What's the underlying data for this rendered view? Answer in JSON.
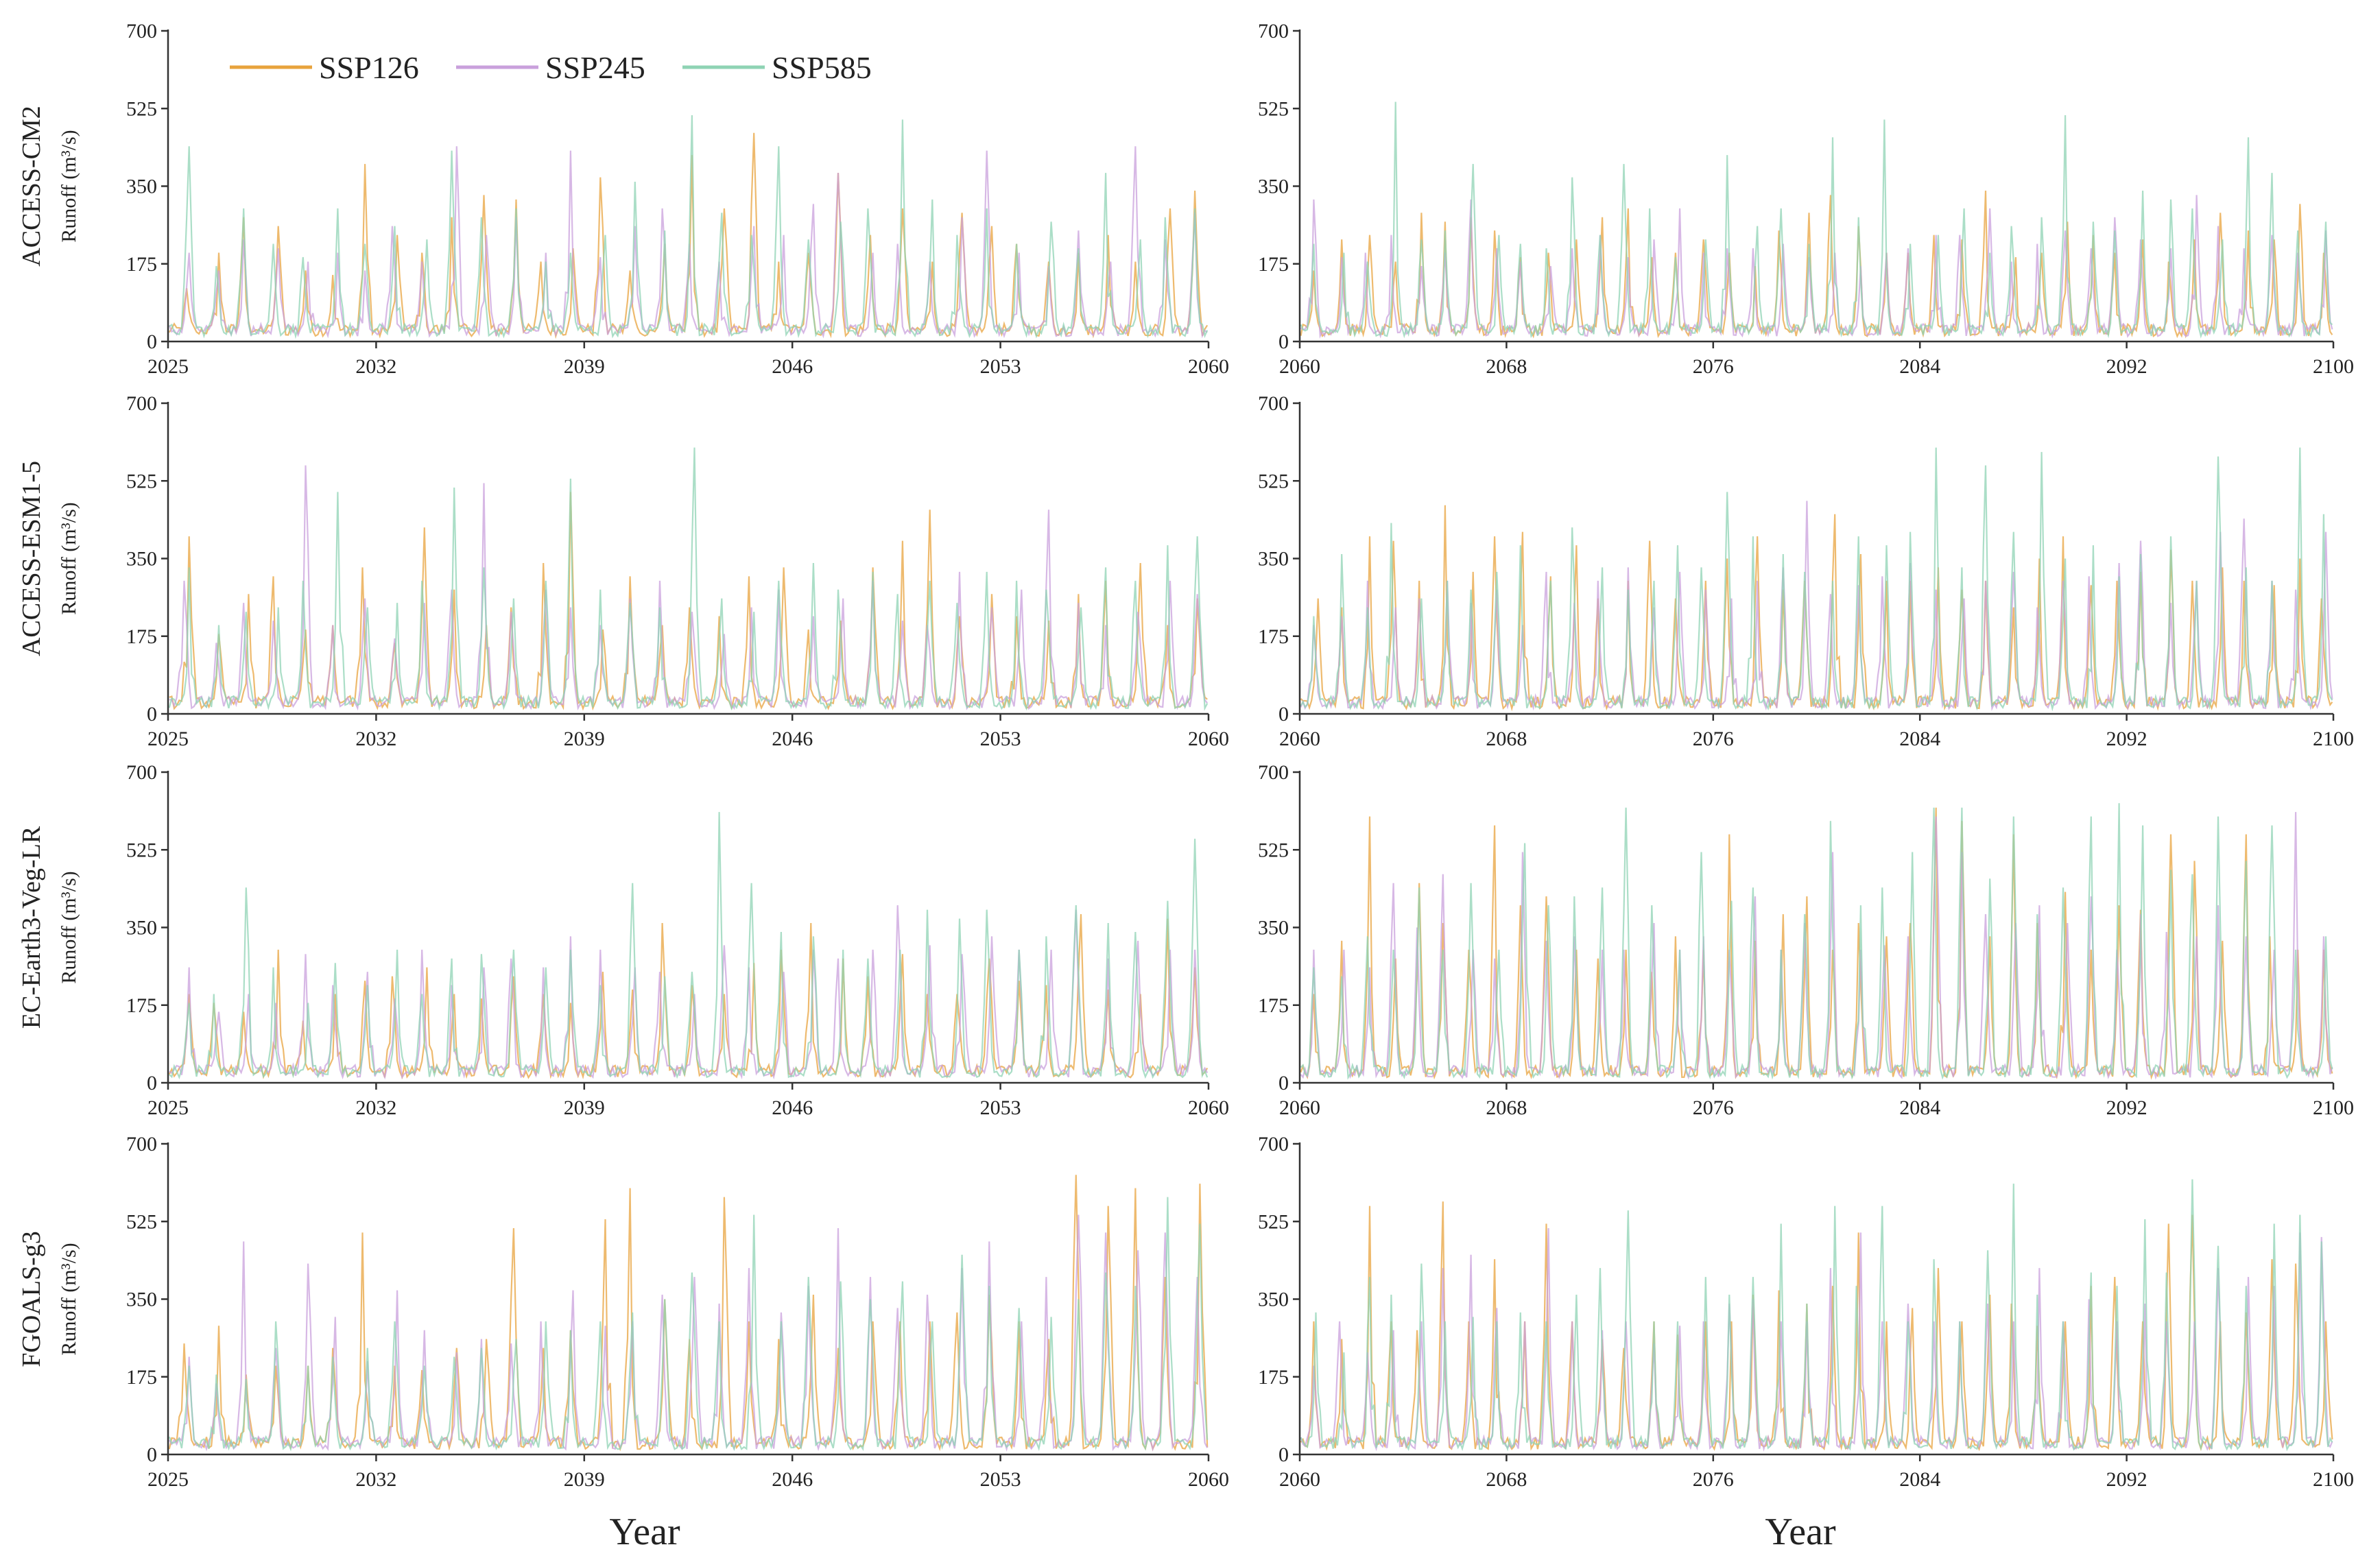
{
  "chart_data": {
    "type": "line",
    "x_label": "Year",
    "y_label": "Runoff (m³/s)",
    "y_ticks": [
      0,
      175,
      350,
      525,
      700
    ],
    "ylim": [
      0,
      700
    ],
    "periods": [
      {
        "name": "2025-2060",
        "xlim": [
          2025,
          2060
        ],
        "x_ticks": [
          2025,
          2032,
          2039,
          2046,
          2053,
          2060
        ]
      },
      {
        "name": "2060-2100",
        "xlim": [
          2060,
          2100
        ],
        "x_ticks": [
          2060,
          2068,
          2076,
          2084,
          2092,
          2100
        ]
      }
    ],
    "models": [
      "ACCESS-CM2",
      "ACCESS-ESM1-5",
      "EC-Earth3-Veg-LR",
      "FGOALS-g3"
    ],
    "series": [
      {
        "name": "SSP126",
        "color": "#E8A33D"
      },
      {
        "name": "SSP245",
        "color": "#C9A0DC"
      },
      {
        "name": "SSP585",
        "color": "#8FD3B4"
      }
    ],
    "data_description": "Monthly runoff series; each year shows a seasonal flood peak. Approximate annual peak values (m3/s) per model, period and scenario.",
    "annual_peaks": {
      "ACCESS-CM2": {
        "2025-2060": {
          "SSP126": [
            120,
            200,
            280,
            260,
            160,
            150,
            400,
            240,
            200,
            280,
            330,
            320,
            180,
            210,
            370,
            160,
            220,
            420,
            300,
            470,
            180,
            200,
            380,
            240,
            300,
            180,
            290,
            260,
            220,
            180,
            200,
            240,
            180,
            300,
            340
          ],
          "SSP245": [
            200,
            160,
            230,
            210,
            180,
            200,
            160,
            260,
            180,
            440,
            240,
            280,
            200,
            430,
            190,
            260,
            300,
            220,
            180,
            260,
            240,
            310,
            380,
            200,
            220,
            180,
            280,
            430,
            200,
            170,
            250,
            180,
            440,
            230,
            290
          ],
          "SSP585": [
            440,
            170,
            300,
            220,
            190,
            300,
            220,
            260,
            230,
            430,
            280,
            300,
            180,
            200,
            240,
            360,
            250,
            510,
            290,
            240,
            440,
            230,
            270,
            300,
            500,
            320,
            240,
            300,
            220,
            270,
            210,
            380,
            230,
            280,
            300
          ]
        },
        "2060-2100": {
          "SSP126": [
            160,
            230,
            240,
            180,
            290,
            270,
            280,
            250,
            190,
            200,
            230,
            280,
            300,
            190,
            200,
            230,
            200,
            170,
            250,
            290,
            330,
            260,
            200,
            200,
            240,
            230,
            340,
            190,
            200,
            270,
            240,
            200,
            230,
            180,
            230,
            290,
            250,
            230,
            310,
            200
          ],
          "SSP245": [
            320,
            190,
            200,
            240,
            170,
            200,
            320,
            210,
            180,
            170,
            210,
            240,
            190,
            230,
            300,
            200,
            210,
            210,
            220,
            190,
            200,
            170,
            200,
            210,
            240,
            240,
            300,
            180,
            220,
            250,
            210,
            280,
            230,
            210,
            330,
            260,
            210,
            240,
            200,
            250
          ],
          "SSP585": [
            220,
            200,
            180,
            540,
            230,
            250,
            400,
            240,
            220,
            210,
            370,
            240,
            400,
            300,
            190,
            230,
            420,
            260,
            300,
            220,
            460,
            280,
            500,
            220,
            240,
            300,
            200,
            260,
            280,
            510,
            270,
            250,
            340,
            320,
            300,
            230,
            460,
            380,
            250,
            270
          ]
        }
      },
      "ACCESS-ESM1-5": {
        "2025-2060": {
          "SSP126": [
            400,
            180,
            270,
            310,
            190,
            200,
            330,
            160,
            420,
            280,
            200,
            240,
            340,
            500,
            190,
            310,
            200,
            240,
            220,
            310,
            330,
            190,
            210,
            330,
            390,
            460,
            220,
            270,
            220,
            210,
            270,
            300,
            340,
            200,
            260
          ],
          "SSP245": [
            300,
            160,
            250,
            210,
            560,
            200,
            260,
            170,
            250,
            280,
            520,
            230,
            280,
            240,
            200,
            260,
            300,
            230,
            180,
            240,
            280,
            220,
            260,
            300,
            210,
            200,
            320,
            240,
            280,
            460,
            250,
            200,
            230,
            300,
            270
          ],
          "SSP585": [
            330,
            200,
            230,
            240,
            300,
            500,
            240,
            250,
            300,
            510,
            330,
            260,
            300,
            530,
            280,
            250,
            240,
            600,
            260,
            230,
            300,
            340,
            280,
            320,
            270,
            300,
            250,
            320,
            300,
            280,
            240,
            330,
            300,
            380,
            400
          ]
        },
        "2060-2100": {
          "SSP126": [
            260,
            240,
            400,
            390,
            300,
            470,
            320,
            400,
            410,
            310,
            380,
            260,
            300,
            390,
            260,
            300,
            350,
            400,
            280,
            300,
            450,
            360,
            300,
            300,
            330,
            280,
            300,
            240,
            350,
            400,
            290,
            300,
            320,
            370,
            300,
            330,
            300,
            290,
            350,
            260
          ],
          "SSP245": [
            200,
            220,
            300,
            240,
            260,
            300,
            250,
            280,
            200,
            320,
            250,
            300,
            330,
            240,
            320,
            280,
            260,
            300,
            330,
            480,
            270,
            290,
            310,
            340,
            280,
            260,
            300,
            320,
            240,
            300,
            310,
            340,
            390,
            250,
            300,
            410,
            440,
            300,
            280,
            410
          ],
          "SSP585": [
            220,
            360,
            240,
            430,
            260,
            300,
            280,
            320,
            380,
            300,
            420,
            330,
            280,
            300,
            380,
            330,
            500,
            400,
            360,
            320,
            300,
            400,
            380,
            410,
            600,
            330,
            560,
            410,
            590,
            350,
            380,
            310,
            360,
            400,
            300,
            580,
            330,
            300,
            600,
            450
          ]
        }
      },
      "EC-Earth3-Veg-LR": {
        "2025-2060": {
          "SSP126": [
            200,
            180,
            160,
            300,
            140,
            200,
            230,
            240,
            260,
            200,
            190,
            240,
            200,
            180,
            250,
            210,
            360,
            220,
            200,
            270,
            300,
            360,
            280,
            240,
            290,
            200,
            200,
            280,
            230,
            220,
            380,
            210,
            200,
            370,
            260
          ],
          "SSP245": [
            260,
            160,
            200,
            180,
            290,
            220,
            250,
            190,
            300,
            220,
            260,
            280,
            260,
            330,
            300,
            260,
            250,
            200,
            310,
            260,
            250,
            300,
            280,
            300,
            400,
            310,
            290,
            330,
            300,
            300,
            390,
            280,
            320,
            300,
            300
          ],
          "SSP585": [
            180,
            200,
            440,
            260,
            180,
            270,
            220,
            300,
            200,
            280,
            290,
            300,
            260,
            300,
            220,
            450,
            240,
            250,
            610,
            450,
            340,
            330,
            300,
            280,
            300,
            390,
            370,
            390,
            300,
            330,
            400,
            360,
            340,
            410,
            550
          ]
        },
        "2060-2100": {
          "SSP126": [
            200,
            320,
            600,
            280,
            450,
            360,
            300,
            580,
            400,
            420,
            300,
            280,
            300,
            250,
            330,
            300,
            560,
            320,
            380,
            420,
            300,
            360,
            330,
            360,
            620,
            590,
            330,
            560,
            360,
            430,
            300,
            400,
            390,
            560,
            500,
            320,
            560,
            330,
            300,
            300
          ],
          "SSP245": [
            300,
            300,
            260,
            450,
            350,
            470,
            300,
            280,
            520,
            320,
            330,
            300,
            300,
            360,
            300,
            330,
            300,
            420,
            300,
            360,
            520,
            300,
            310,
            330,
            600,
            520,
            380,
            360,
            400,
            360,
            420,
            300,
            380,
            340,
            330,
            400,
            330,
            300,
            610,
            330
          ],
          "SSP585": [
            260,
            240,
            330,
            300,
            440,
            300,
            450,
            300,
            540,
            400,
            420,
            440,
            620,
            400,
            300,
            520,
            410,
            440,
            300,
            380,
            590,
            400,
            440,
            520,
            620,
            620,
            460,
            600,
            380,
            440,
            600,
            630,
            580,
            480,
            470,
            600,
            500,
            580,
            300,
            330
          ]
        }
      },
      "FGOALS-g3": {
        "2025-2060": {
          "SSP126": [
            250,
            290,
            180,
            200,
            200,
            240,
            500,
            200,
            190,
            240,
            260,
            510,
            240,
            280,
            530,
            600,
            350,
            260,
            580,
            300,
            260,
            360,
            240,
            300,
            300,
            300,
            320,
            360,
            300,
            260,
            630,
            560,
            600,
            400,
            610
          ],
          "SSP245": [
            220,
            160,
            480,
            240,
            430,
            310,
            210,
            370,
            280,
            230,
            260,
            250,
            300,
            370,
            290,
            300,
            360,
            400,
            340,
            420,
            320,
            380,
            510,
            400,
            330,
            360,
            420,
            480,
            300,
            400,
            540,
            500,
            460,
            500,
            400
          ],
          "SSP585": [
            200,
            180,
            170,
            300,
            200,
            220,
            240,
            300,
            200,
            220,
            240,
            260,
            300,
            280,
            300,
            320,
            350,
            410,
            300,
            540,
            300,
            400,
            390,
            350,
            390,
            300,
            450,
            380,
            330,
            310,
            350,
            410,
            380,
            580,
            520
          ]
        },
        "2060-2100": {
          "SSP126": [
            300,
            260,
            560,
            300,
            280,
            570,
            300,
            440,
            300,
            520,
            300,
            260,
            240,
            300,
            270,
            300,
            300,
            360,
            370,
            340,
            380,
            500,
            300,
            330,
            420,
            300,
            360,
            340,
            290,
            300,
            380,
            400,
            300,
            520,
            540,
            300,
            320,
            440,
            430,
            300
          ],
          "SSP245": [
            200,
            300,
            230,
            280,
            300,
            420,
            450,
            330,
            300,
            510,
            300,
            280,
            300,
            250,
            290,
            300,
            340,
            350,
            300,
            300,
            420,
            500,
            300,
            340,
            300,
            300,
            340,
            300,
            420,
            300,
            350,
            300,
            340,
            300,
            300,
            420,
            400,
            380,
            500,
            490
          ],
          "SSP585": [
            320,
            230,
            400,
            360,
            430,
            300,
            310,
            300,
            320,
            300,
            360,
            420,
            550,
            300,
            300,
            400,
            360,
            400,
            520,
            340,
            560,
            380,
            560,
            300,
            440,
            300,
            460,
            610,
            360,
            300,
            410,
            380,
            530,
            410,
            620,
            470,
            380,
            520,
            540,
            480
          ]
        }
      }
    }
  }
}
